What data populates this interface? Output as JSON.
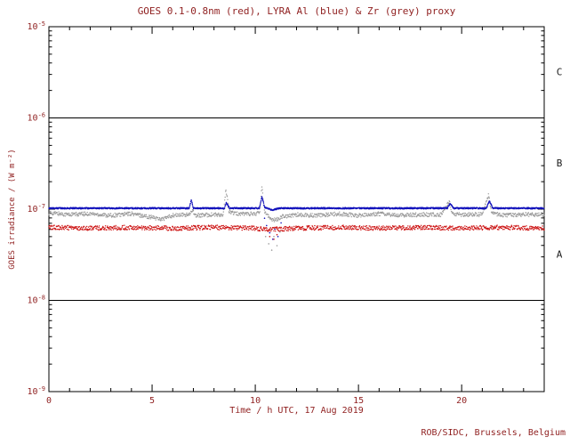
{
  "chart_data": {
    "type": "scatter",
    "title": "GOES 0.1-0.8nm (red), LYRA Al (blue) & Zr (grey) proxy",
    "xlabel": "Time / h UTC, 17 Aug 2019",
    "ylabel": "GOES irradiance / (W m⁻²)",
    "credit": "ROB/SIDC, Brussels, Belgium",
    "xlim": [
      0,
      24
    ],
    "ylim_log10": [
      -9,
      -5
    ],
    "x_major_ticks": [
      0,
      5,
      10,
      15,
      20
    ],
    "y_tick_exponents": [
      -5,
      -6,
      -7,
      -8,
      -9
    ],
    "hlines_log10": [
      -6,
      -8
    ],
    "class_bands": [
      {
        "label": "C",
        "between_exponents": [
          -6,
          -5
        ]
      },
      {
        "label": "B",
        "between_exponents": [
          -7,
          -6
        ]
      },
      {
        "label": "A",
        "between_exponents": [
          -8,
          -7
        ]
      }
    ],
    "colors": {
      "axis": "#000000",
      "text": "#8f1f1f",
      "class_letters": "#1a1a1a",
      "background": "#ffffff"
    },
    "series": [
      {
        "id": "lyra-zr-grey",
        "name": "LYRA Zr proxy",
        "color": "#999999",
        "step": 0.02,
        "noise_dex": 0.022,
        "anchors": [
          [
            0,
            -7.04
          ],
          [
            1,
            -7.06
          ],
          [
            2,
            -7.05
          ],
          [
            3,
            -7.07
          ],
          [
            4,
            -7.05
          ],
          [
            5,
            -7.09
          ],
          [
            5.5,
            -7.11
          ],
          [
            6,
            -7.07
          ],
          [
            6.85,
            -7.06
          ],
          [
            6.95,
            -7.0
          ],
          [
            7.1,
            -7.07
          ],
          [
            8,
            -7.06
          ],
          [
            8.45,
            -7.07
          ],
          [
            8.58,
            -6.78
          ],
          [
            8.72,
            -7.02
          ],
          [
            9,
            -7.05
          ],
          [
            10,
            -7.05
          ],
          [
            10.22,
            -7.04
          ],
          [
            10.32,
            -6.74
          ],
          [
            10.45,
            -7.02
          ],
          [
            10.7,
            -7.1
          ],
          [
            11,
            -7.12
          ],
          [
            11.3,
            -7.08
          ],
          [
            12,
            -7.06
          ],
          [
            13,
            -7.07
          ],
          [
            14,
            -7.05
          ],
          [
            15,
            -7.07
          ],
          [
            16,
            -7.05
          ],
          [
            17,
            -7.07
          ],
          [
            18,
            -7.06
          ],
          [
            19,
            -7.06
          ],
          [
            19.4,
            -6.92
          ],
          [
            19.55,
            -7.05
          ],
          [
            20,
            -7.06
          ],
          [
            21,
            -7.06
          ],
          [
            21.3,
            -6.85
          ],
          [
            21.45,
            -7.04
          ],
          [
            22,
            -7.07
          ],
          [
            23,
            -7.06
          ],
          [
            24,
            -7.06
          ]
        ],
        "outliers": [
          [
            10.5,
            -7.3
          ],
          [
            10.65,
            -7.38
          ],
          [
            10.8,
            -7.45
          ],
          [
            10.9,
            -7.3
          ],
          [
            11.05,
            -7.4
          ],
          [
            11.2,
            -7.25
          ],
          [
            8.75,
            -7.2
          ],
          [
            21.45,
            -7.2
          ]
        ]
      },
      {
        "id": "goes-red",
        "name": "GOES 0.1-0.8nm",
        "color": "#cc1111",
        "step": 0.02,
        "noise_dex": 0.025,
        "anchors": [
          [
            0,
            -7.2
          ],
          [
            2,
            -7.21
          ],
          [
            4,
            -7.2
          ],
          [
            6,
            -7.21
          ],
          [
            8,
            -7.2
          ],
          [
            10,
            -7.21
          ],
          [
            10.6,
            -7.23
          ],
          [
            11,
            -7.22
          ],
          [
            12,
            -7.21
          ],
          [
            14,
            -7.2
          ],
          [
            16,
            -7.21
          ],
          [
            18,
            -7.2
          ],
          [
            20,
            -7.21
          ],
          [
            22,
            -7.2
          ],
          [
            24,
            -7.21
          ]
        ],
        "outliers": [
          [
            10.7,
            -7.3
          ],
          [
            10.9,
            -7.33
          ],
          [
            11.05,
            -7.28
          ]
        ]
      },
      {
        "id": "lyra-al-blue",
        "name": "LYRA Al proxy",
        "color": "#1111bb",
        "step": 0.012,
        "noise_dex": 0.008,
        "anchors": [
          [
            0,
            -6.99
          ],
          [
            6.8,
            -6.99
          ],
          [
            6.9,
            -6.9
          ],
          [
            7.0,
            -6.99
          ],
          [
            8.5,
            -6.99
          ],
          [
            8.6,
            -6.93
          ],
          [
            8.75,
            -6.99
          ],
          [
            10.2,
            -6.99
          ],
          [
            10.32,
            -6.86
          ],
          [
            10.45,
            -6.98
          ],
          [
            10.8,
            -7.01
          ],
          [
            11.2,
            -6.99
          ],
          [
            19.3,
            -6.99
          ],
          [
            19.45,
            -6.94
          ],
          [
            19.6,
            -6.99
          ],
          [
            21.2,
            -6.99
          ],
          [
            21.35,
            -6.91
          ],
          [
            21.5,
            -6.99
          ],
          [
            24,
            -6.99
          ]
        ],
        "outliers": [
          [
            10.55,
            -7.18
          ],
          [
            10.7,
            -7.26
          ],
          [
            10.85,
            -7.33
          ],
          [
            10.95,
            -7.22
          ],
          [
            11.1,
            -7.3
          ],
          [
            11.25,
            -7.15
          ],
          [
            10.45,
            -7.1
          ]
        ]
      }
    ]
  }
}
